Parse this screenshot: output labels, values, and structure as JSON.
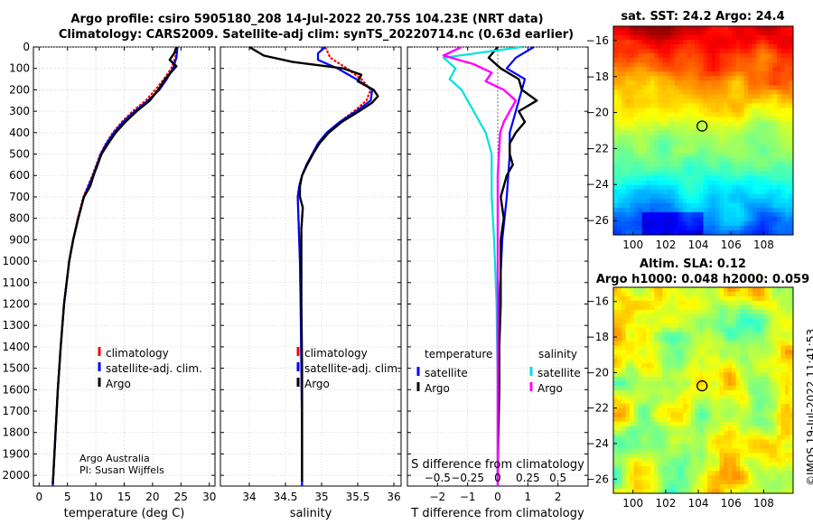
{
  "header": {
    "line1": "Argo profile: csiro 5905180_208 14-Jul-2022 20.75S 104.23E (NRT data)",
    "line2": "Climatology: CARS2009. Satellite-adj clim: synTS_20220714.nc (0.63d earlier)"
  },
  "credit": {
    "org": "Argo Australia",
    "pi": "PI: Susan Wijffels"
  },
  "stamp": "©IMOS 19-Jul-2022 11:41:53",
  "colors": {
    "climatology": "#ff0000",
    "satellite": "#0000ff",
    "argo": "#000000",
    "temp_sat": "#00e0e0",
    "sal_argo": "#ff00ff"
  },
  "chart_data": [
    {
      "type": "line",
      "name": "temperature",
      "xlabel": "temperature (deg C)",
      "ylabel": "",
      "xlim": [
        -1,
        31
      ],
      "ylim": [
        2050,
        0
      ],
      "xticks": [
        0,
        5,
        10,
        15,
        20,
        25,
        30
      ],
      "yticks": [
        0,
        100,
        200,
        300,
        400,
        500,
        600,
        700,
        800,
        900,
        1000,
        1100,
        1200,
        1300,
        1400,
        1500,
        1600,
        1700,
        1800,
        1900,
        2000
      ],
      "legend": [
        "climatology",
        "satellite-adj. clim.",
        "Argo"
      ],
      "series": [
        {
          "name": "climatology",
          "depth": [
            0,
            50,
            100,
            150,
            200,
            250,
            300,
            350,
            400,
            450,
            500,
            600,
            700,
            800,
            900,
            1000,
            1200,
            1400,
            1600,
            1800,
            2000,
            2050
          ],
          "values": [
            24.3,
            24.0,
            23.3,
            22.0,
            20.5,
            18.8,
            16.5,
            14.6,
            13.0,
            11.8,
            10.8,
            9.4,
            7.8,
            6.8,
            6.0,
            5.3,
            4.4,
            3.8,
            3.3,
            2.9,
            2.5,
            2.4
          ]
        },
        {
          "name": "satellite-adj. clim.",
          "depth": [
            0,
            50,
            100,
            150,
            200,
            250,
            300,
            350,
            400,
            450,
            500,
            600,
            700,
            800,
            900,
            1000,
            1200,
            1400,
            1600,
            1800,
            2000,
            2050
          ],
          "values": [
            24.4,
            24.2,
            23.6,
            22.5,
            21.2,
            19.2,
            16.9,
            14.8,
            13.2,
            11.9,
            10.9,
            9.5,
            7.9,
            6.9,
            6.0,
            5.3,
            4.4,
            3.8,
            3.3,
            2.9,
            2.5,
            2.4
          ]
        },
        {
          "name": "Argo",
          "depth": [
            0,
            30,
            60,
            90,
            120,
            150,
            200,
            250,
            300,
            350,
            400,
            450,
            500,
            550,
            600,
            650,
            700,
            800,
            900,
            1000,
            1200,
            1400,
            1600,
            1800,
            2000,
            2040
          ],
          "values": [
            24.2,
            23.8,
            23.0,
            24.2,
            23.2,
            22.2,
            21.0,
            19.5,
            17.2,
            15.2,
            13.5,
            12.2,
            11.0,
            10.3,
            9.6,
            9.0,
            7.9,
            6.9,
            6.0,
            5.3,
            4.4,
            3.8,
            3.3,
            2.9,
            2.5,
            2.4
          ]
        }
      ]
    },
    {
      "type": "line",
      "name": "salinity",
      "xlabel": "salinity",
      "ylabel": "",
      "xlim": [
        33.6,
        36.1
      ],
      "ylim": [
        2050,
        0
      ],
      "xticks": [
        34,
        34.5,
        35,
        35.5,
        36
      ],
      "legend": [
        "climatology",
        "satellite-adj. clim.",
        "Argo"
      ],
      "series": [
        {
          "name": "climatology",
          "depth": [
            0,
            50,
            100,
            150,
            200,
            250,
            300,
            350,
            400,
            450,
            500,
            550,
            600,
            650,
            700,
            800,
            1000,
            1200,
            1500,
            1800,
            2050
          ],
          "values": [
            35.05,
            35.12,
            35.35,
            35.55,
            35.68,
            35.62,
            35.45,
            35.25,
            35.08,
            34.96,
            34.88,
            34.8,
            34.73,
            34.69,
            34.67,
            34.68,
            34.7,
            34.71,
            34.72,
            34.73,
            34.73
          ]
        },
        {
          "name": "satellite-adj. clim.",
          "depth": [
            0,
            30,
            60,
            100,
            150,
            200,
            250,
            300,
            350,
            400,
            450,
            500,
            550,
            600,
            650,
            700,
            800,
            1000,
            1200,
            1500,
            1800,
            2050
          ],
          "values": [
            35.05,
            34.95,
            34.95,
            35.22,
            35.48,
            35.7,
            35.68,
            35.48,
            35.25,
            35.07,
            34.95,
            34.87,
            34.79,
            34.73,
            34.69,
            34.67,
            34.68,
            34.7,
            34.71,
            34.72,
            34.73,
            34.73
          ]
        },
        {
          "name": "Argo",
          "depth": [
            0,
            40,
            70,
            100,
            130,
            160,
            200,
            230,
            260,
            300,
            350,
            400,
            450,
            500,
            550,
            600,
            650,
            700,
            750,
            800,
            850,
            900,
            1000,
            1200,
            1500,
            1800,
            2030
          ],
          "values": [
            34.0,
            34.2,
            34.6,
            35.3,
            35.55,
            35.5,
            35.72,
            35.78,
            35.7,
            35.52,
            35.28,
            35.1,
            34.97,
            34.88,
            34.8,
            34.73,
            34.7,
            34.7,
            34.74,
            34.73,
            34.72,
            34.72,
            34.72,
            34.72,
            34.73,
            34.73,
            34.73
          ]
        }
      ]
    },
    {
      "type": "line",
      "name": "differences",
      "xlabel": "T difference from climatology",
      "xlabel2": "S difference from climatology",
      "xlim": [
        -3,
        3
      ],
      "xticks": [
        -2,
        -1,
        0,
        1,
        2
      ],
      "xticks_top": [
        -0.5,
        -0.25,
        0,
        0.25,
        0.5
      ],
      "ylim": [
        2050,
        0
      ],
      "legend_temp_title": "temperature",
      "legend_sal_title": "salinity",
      "legend_labels": [
        "satellite",
        "Argo",
        "satellite",
        "Argo"
      ],
      "series": [
        {
          "name": "temperature satellite",
          "depth": [
            0,
            50,
            100,
            150,
            200,
            300,
            400,
            500,
            700,
            900,
            1200,
            1600,
            2050
          ],
          "values": [
            1.2,
            0.6,
            0.3,
            0.9,
            0.8,
            0.6,
            0.4,
            0.4,
            0.3,
            0.15,
            0.05,
            0.0,
            0.0
          ]
        },
        {
          "name": "temperature Argo",
          "depth": [
            0,
            50,
            100,
            150,
            200,
            250,
            300,
            350,
            400,
            450,
            500,
            550,
            600,
            650,
            700,
            800,
            900,
            1000,
            1200,
            1400,
            1600,
            1800,
            2000
          ],
          "values": [
            0.0,
            -0.3,
            0.1,
            0.7,
            0.8,
            1.3,
            0.7,
            0.9,
            0.6,
            0.4,
            0.4,
            0.5,
            0.3,
            0.2,
            0.1,
            0.2,
            0.1,
            0.1,
            0.1,
            0.05,
            0.05,
            0.02,
            0.0
          ]
        },
        {
          "name": "salinity satellite",
          "depth": [
            0,
            50,
            100,
            150,
            200,
            300,
            400,
            500,
            700,
            900,
            1200,
            1600,
            2050
          ],
          "values": [
            0.2,
            -0.45,
            -0.35,
            -0.4,
            -0.3,
            -0.2,
            -0.1,
            -0.05,
            -0.05,
            -0.03,
            -0.01,
            0.0,
            0.0
          ]
        },
        {
          "name": "salinity Argo",
          "depth": [
            0,
            40,
            80,
            120,
            160,
            200,
            250,
            300,
            350,
            400,
            500,
            600,
            700,
            900,
            1200,
            1600,
            2050
          ],
          "values": [
            -0.3,
            -0.45,
            -0.2,
            -0.05,
            -0.1,
            0.05,
            0.15,
            0.1,
            0.05,
            0.02,
            0.01,
            0.0,
            0.0,
            0.0,
            0.0,
            0.0,
            0.0
          ]
        }
      ]
    },
    {
      "type": "heatmap",
      "name": "sst-map",
      "title": "sat. SST: 24.2 Argo: 24.4",
      "xticks": [
        100,
        102,
        104,
        106,
        108
      ],
      "yticks": [
        -16,
        -18,
        -20,
        -22,
        -24,
        -26
      ],
      "xlim": [
        98.8,
        109.8
      ],
      "ylim": [
        -26.8,
        -15.2
      ],
      "marker": {
        "lon": 104.23,
        "lat": -20.75
      }
    },
    {
      "type": "heatmap",
      "name": "sla-map",
      "title": "Altim. SLA: 0.12",
      "subtitle": "Argo h1000: 0.048 h2000: 0.059",
      "xticks": [
        100,
        102,
        104,
        106,
        108
      ],
      "yticks": [
        -16,
        -18,
        -20,
        -22,
        -24,
        -26
      ],
      "xlim": [
        98.8,
        109.8
      ],
      "ylim": [
        -26.8,
        -15.2
      ],
      "marker": {
        "lon": 104.23,
        "lat": -20.75
      }
    }
  ]
}
